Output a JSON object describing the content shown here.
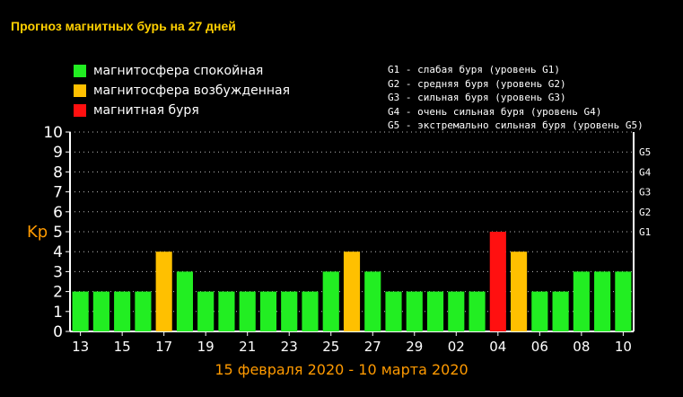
{
  "title": "Прогноз магнитных бурь на 27 дней",
  "legend": [
    {
      "label": "магнитосфера спокойная",
      "color": "#22ee22"
    },
    {
      "label": "магнитосфера возбужденная",
      "color": "#ffc000"
    },
    {
      "label": "магнитная буря",
      "color": "#ff1010"
    }
  ],
  "g_legend": [
    "G1 - слабая буря (уровень G1)",
    "G2 - средняя буря (уровень G2)",
    "G3 - сильная буря (уровень G3)",
    "G4 - очень сильная буря (уровень G4)",
    "G5 - экстремально сильная буря (уровень G5)"
  ],
  "chart_data": {
    "type": "bar",
    "ylabel": "Kp",
    "xlabel": "15 февраля 2020 - 10 марта 2020",
    "ylim": [
      0,
      10
    ],
    "y_ticks": [
      "0",
      "1",
      "2",
      "3",
      "4",
      "5",
      "6",
      "7",
      "8",
      "9",
      "10"
    ],
    "right_ticks": [
      {
        "label": "G1",
        "value": 5
      },
      {
        "label": "G2",
        "value": 6
      },
      {
        "label": "G3",
        "value": 7
      },
      {
        "label": "G4",
        "value": 8
      },
      {
        "label": "G5",
        "value": 9
      }
    ],
    "x_tick_labels": [
      "13",
      "15",
      "17",
      "19",
      "21",
      "23",
      "25",
      "27",
      "29",
      "02",
      "04",
      "06",
      "08",
      "10"
    ],
    "values": [
      2,
      2,
      2,
      2,
      4,
      3,
      2,
      2,
      2,
      2,
      2,
      2,
      3,
      4,
      3,
      2,
      2,
      2,
      2,
      2,
      5,
      4,
      2,
      2,
      3,
      3,
      3
    ],
    "status": [
      "quiet",
      "quiet",
      "quiet",
      "quiet",
      "active",
      "quiet",
      "quiet",
      "quiet",
      "quiet",
      "quiet",
      "quiet",
      "quiet",
      "quiet",
      "active",
      "quiet",
      "quiet",
      "quiet",
      "quiet",
      "quiet",
      "quiet",
      "storm",
      "active",
      "quiet",
      "quiet",
      "quiet",
      "quiet",
      "quiet"
    ],
    "colors": {
      "quiet": "#22ee22",
      "active": "#ffc000",
      "storm": "#ff1010"
    },
    "grid": true
  }
}
